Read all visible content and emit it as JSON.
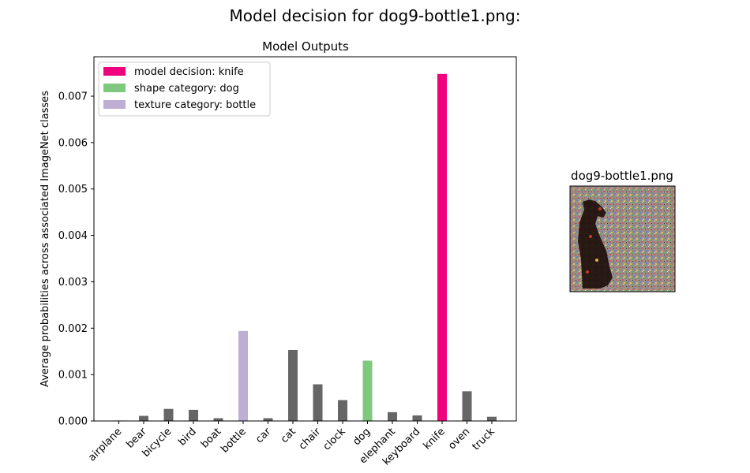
{
  "figure": {
    "suptitle": "Model decision for dog9-bottle1.png:"
  },
  "chart_data": {
    "type": "bar",
    "title": "Model Outputs",
    "xlabel": "",
    "ylabel": "Average probabilities across associated ImageNet classes",
    "categories": [
      "airplane",
      "bear",
      "bicycle",
      "bird",
      "boat",
      "bottle",
      "car",
      "cat",
      "chair",
      "clock",
      "dog",
      "elephant",
      "keyboard",
      "knife",
      "oven",
      "truck"
    ],
    "values": [
      1e-05,
      0.00011,
      0.00026,
      0.00024,
      6e-05,
      0.00194,
      6e-05,
      0.00153,
      0.00079,
      0.00045,
      0.0013,
      0.00019,
      0.00012,
      0.00748,
      0.00064,
      9e-05
    ],
    "bar_roles": [
      "other",
      "other",
      "other",
      "other",
      "other",
      "texture",
      "other",
      "other",
      "other",
      "other",
      "shape",
      "other",
      "other",
      "decision",
      "other",
      "other"
    ],
    "ylim": [
      0,
      0.00785
    ],
    "yticks": [
      "0.000",
      "0.001",
      "0.002",
      "0.003",
      "0.004",
      "0.005",
      "0.006",
      "0.007"
    ],
    "ytick_values": [
      0,
      0.001,
      0.002,
      0.003,
      0.004,
      0.005,
      0.006,
      0.007
    ],
    "grid": false,
    "legend_position": "top-left",
    "legend": [
      {
        "label": "model decision: knife",
        "role": "decision"
      },
      {
        "label": "shape category: dog",
        "role": "shape"
      },
      {
        "label": "texture category: bottle",
        "role": "texture"
      }
    ],
    "colors": {
      "decision": "#f0027f",
      "shape": "#7fc97f",
      "texture": "#beaed4",
      "other": "#666666"
    }
  },
  "thumbnail": {
    "title": "dog9-bottle1.png"
  }
}
